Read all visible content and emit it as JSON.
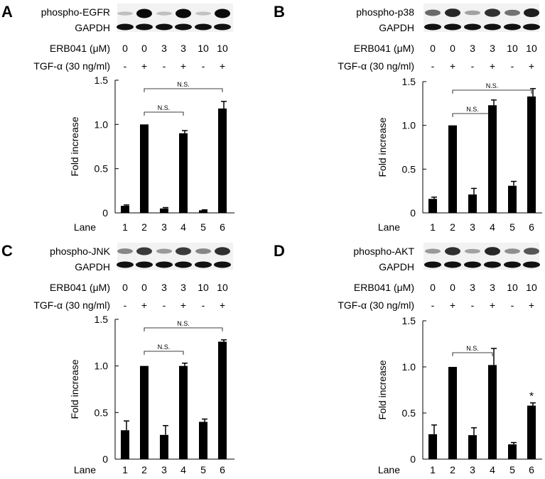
{
  "colors": {
    "bar": "#000000",
    "band": "#111111",
    "blot_bg": "#f2f2f2"
  },
  "lanes": [
    "1",
    "2",
    "3",
    "4",
    "5",
    "6"
  ],
  "lane_label": "Lane",
  "erb_label": "ERB041 (μM)",
  "erb_values": [
    "0",
    "0",
    "3",
    "3",
    "10",
    "10"
  ],
  "tgf_label": "TGF-α (30 ng/ml)",
  "tgf_values": [
    "-",
    "+",
    "-",
    "+",
    "-",
    "+"
  ],
  "gapdh_label": "GAPDH",
  "ns_label": "N.S.",
  "panels": [
    {
      "letter": "A",
      "blot_label": "phospho-EGFR",
      "band_strength": [
        0.05,
        1.0,
        0.05,
        1.0,
        0.03,
        1.0
      ],
      "chart_data": {
        "type": "bar",
        "categories": [
          "1",
          "2",
          "3",
          "4",
          "5",
          "6"
        ],
        "values": [
          0.08,
          1.0,
          0.05,
          0.9,
          0.03,
          1.18
        ],
        "errors": [
          0.01,
          0.0,
          0.01,
          0.03,
          0.005,
          0.08
        ],
        "ylabel": "Fold increase",
        "xlabel": "Lane",
        "ylim": [
          0,
          1.5
        ],
        "yticks": [
          "0",
          "0.5",
          "1.0",
          "1.5"
        ],
        "brackets": [
          {
            "from": 2,
            "to": 4,
            "label": "N.S."
          },
          {
            "from": 2,
            "to": 6,
            "label": "N.S."
          }
        ],
        "annotations": []
      }
    },
    {
      "letter": "B",
      "blot_label": "phospho-p38",
      "band_strength": [
        0.5,
        0.85,
        0.2,
        0.8,
        0.45,
        0.9
      ],
      "chart_data": {
        "type": "bar",
        "categories": [
          "1",
          "2",
          "3",
          "4",
          "5",
          "6"
        ],
        "values": [
          0.16,
          1.0,
          0.21,
          1.23,
          0.31,
          1.33
        ],
        "errors": [
          0.02,
          0.0,
          0.07,
          0.06,
          0.05,
          0.09
        ],
        "ylabel": "Fold increase",
        "xlabel": "Lane",
        "ylim": [
          0,
          1.5
        ],
        "yticks": [
          "0",
          "0.5",
          "1.0",
          "1.5"
        ],
        "brackets": [
          {
            "from": 2,
            "to": 4,
            "label": "N.S."
          },
          {
            "from": 2,
            "to": 6,
            "label": "N.S."
          }
        ],
        "annotations": []
      }
    },
    {
      "letter": "C",
      "blot_label": "phospho-JNK",
      "band_strength": [
        0.35,
        0.75,
        0.25,
        0.75,
        0.35,
        0.8
      ],
      "chart_data": {
        "type": "bar",
        "categories": [
          "1",
          "2",
          "3",
          "4",
          "5",
          "6"
        ],
        "values": [
          0.31,
          1.0,
          0.26,
          1.0,
          0.4,
          1.26
        ],
        "errors": [
          0.1,
          0.0,
          0.1,
          0.03,
          0.03,
          0.02
        ],
        "ylabel": "Fold increase",
        "xlabel": "Lane",
        "ylim": [
          0,
          1.5
        ],
        "yticks": [
          "0",
          "0.5",
          "1.0",
          "1.5"
        ],
        "brackets": [
          {
            "from": 2,
            "to": 4,
            "label": "N.S."
          },
          {
            "from": 2,
            "to": 6,
            "label": "N.S."
          }
        ],
        "annotations": []
      }
    },
    {
      "letter": "D",
      "blot_label": "phospho-AKT",
      "band_strength": [
        0.25,
        0.8,
        0.2,
        0.85,
        0.3,
        0.6
      ],
      "chart_data": {
        "type": "bar",
        "categories": [
          "1",
          "2",
          "3",
          "4",
          "5",
          "6"
        ],
        "values": [
          0.27,
          1.0,
          0.26,
          1.02,
          0.16,
          0.58
        ],
        "errors": [
          0.1,
          0.0,
          0.08,
          0.18,
          0.02,
          0.03
        ],
        "ylabel": "Fold increase",
        "xlabel": "Lane",
        "ylim": [
          0,
          1.5
        ],
        "yticks": [
          "0",
          "0.5",
          "1.0",
          "1.5"
        ],
        "brackets": [
          {
            "from": 2,
            "to": 4,
            "label": "N.S."
          }
        ],
        "annotations": [
          {
            "lane": 6,
            "text": "*"
          }
        ]
      }
    }
  ]
}
